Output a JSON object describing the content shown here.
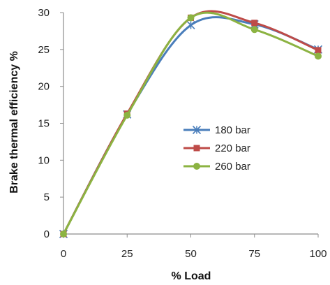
{
  "chart_data": {
    "type": "line",
    "xlabel": "% Load",
    "ylabel": "Brake thermal efficiency %",
    "x": [
      0,
      25,
      50,
      75,
      100
    ],
    "xticks": [
      0,
      25,
      50,
      75,
      100
    ],
    "yticks": [
      0,
      5,
      10,
      15,
      20,
      25,
      30
    ],
    "xlim": [
      0,
      100
    ],
    "ylim": [
      0,
      30
    ],
    "grid": false,
    "smooth": true,
    "legend_position": "center-right",
    "series": [
      {
        "name": "180 bar",
        "values": [
          0,
          16.2,
          28.3,
          28.4,
          25.0
        ],
        "color": "#4a7ebb",
        "marker": "asterisk"
      },
      {
        "name": "220 bar",
        "values": [
          0,
          16.3,
          29.3,
          28.6,
          24.9
        ],
        "color": "#be4b48",
        "marker": "square"
      },
      {
        "name": "260 bar",
        "values": [
          0,
          16.1,
          29.3,
          27.7,
          24.1
        ],
        "color": "#8cb342",
        "marker": "circle"
      }
    ]
  }
}
